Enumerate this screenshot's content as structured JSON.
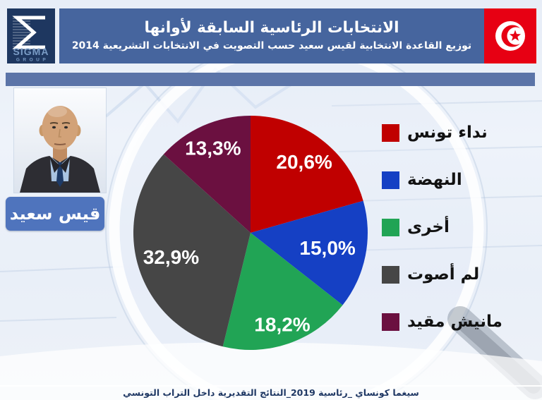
{
  "logo": {
    "sigma_glyph": "Σ",
    "brand": "SIGMA",
    "sub_brand": "GROUP"
  },
  "header": {
    "title_line1": "الانتخابات الرئاسية السابقة لأوانها",
    "title_line2": "توزيع القاعدة الانتخابية لقيس سعيد حسب التصويت في الانتخابات التشريعية 2014",
    "flag_icon": "tunisia-flag-icon"
  },
  "candidate": {
    "portrait_icon": "kais-saied-portrait-icon",
    "name": "قيس سعيد"
  },
  "chart_data": {
    "type": "pie",
    "title": "توزيع القاعدة الانتخابية لقيس سعيد حسب التصويت في الانتخابات التشريعية 2014",
    "categories": [
      "نداء تونس",
      "النهضة",
      "أخرى",
      "لم أصوت",
      "مانيش مقيد"
    ],
    "values": [
      20.6,
      15.0,
      18.2,
      32.9,
      13.3
    ],
    "value_labels": [
      "20,6%",
      "15,0%",
      "18,2%",
      "32,9%",
      "13,3%"
    ],
    "colors": [
      "#c00000",
      "#1540c4",
      "#21a455",
      "#464646",
      "#6b1040"
    ],
    "start_angle_deg": -90,
    "direction": "clockwise",
    "legend_position": "right",
    "label_color": "#ffffff"
  },
  "footer": {
    "text": "سيغما كونساي _رئاسية 2019_النتائج التقديرية داخل التراب التونسي"
  },
  "colors": {
    "logo_bg": "#1e3760",
    "logo_text": "#7a9cc6",
    "header_bg": "#46659e",
    "band_bg": "#5b74a8",
    "caption_bg": "#4f74bd",
    "flag_red": "#e70013",
    "footer_text": "#1f3864",
    "legend_text": "#121212"
  }
}
